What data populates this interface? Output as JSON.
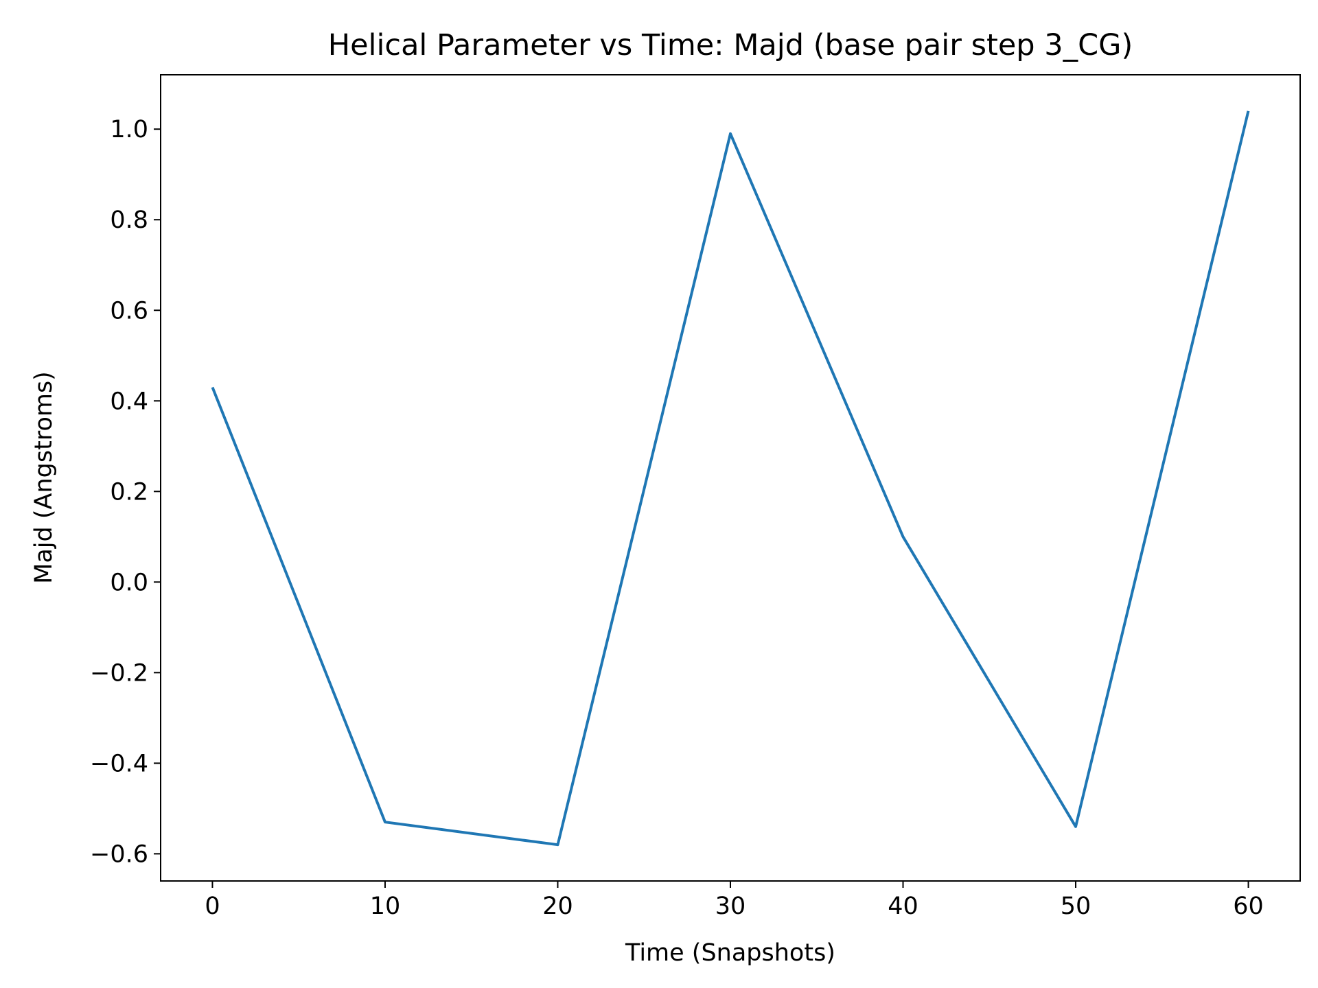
{
  "chart_data": {
    "type": "line",
    "title": "Helical Parameter vs Time: Majd (base pair step 3_CG)",
    "xlabel": "Time (Snapshots)",
    "ylabel": "Majd (Angstroms)",
    "xlim": [
      -3,
      63
    ],
    "ylim": [
      -0.66,
      1.12
    ],
    "x_ticks": [
      0,
      10,
      20,
      30,
      40,
      50,
      60
    ],
    "x_tick_labels": [
      "0",
      "10",
      "20",
      "30",
      "40",
      "50",
      "60"
    ],
    "y_ticks": [
      -0.6,
      -0.4,
      -0.2,
      0.0,
      0.2,
      0.4,
      0.6,
      0.8,
      1.0
    ],
    "y_tick_labels": [
      "−0.6",
      "−0.4",
      "−0.2",
      "0.0",
      "0.2",
      "0.4",
      "0.6",
      "0.8",
      "1.0"
    ],
    "grid": false,
    "series": [
      {
        "color": "#1f77b4",
        "x": [
          0,
          10,
          20,
          30,
          40,
          50,
          60
        ],
        "y": [
          0.43,
          -0.53,
          -0.58,
          0.99,
          0.1,
          -0.54,
          1.04
        ]
      }
    ]
  }
}
